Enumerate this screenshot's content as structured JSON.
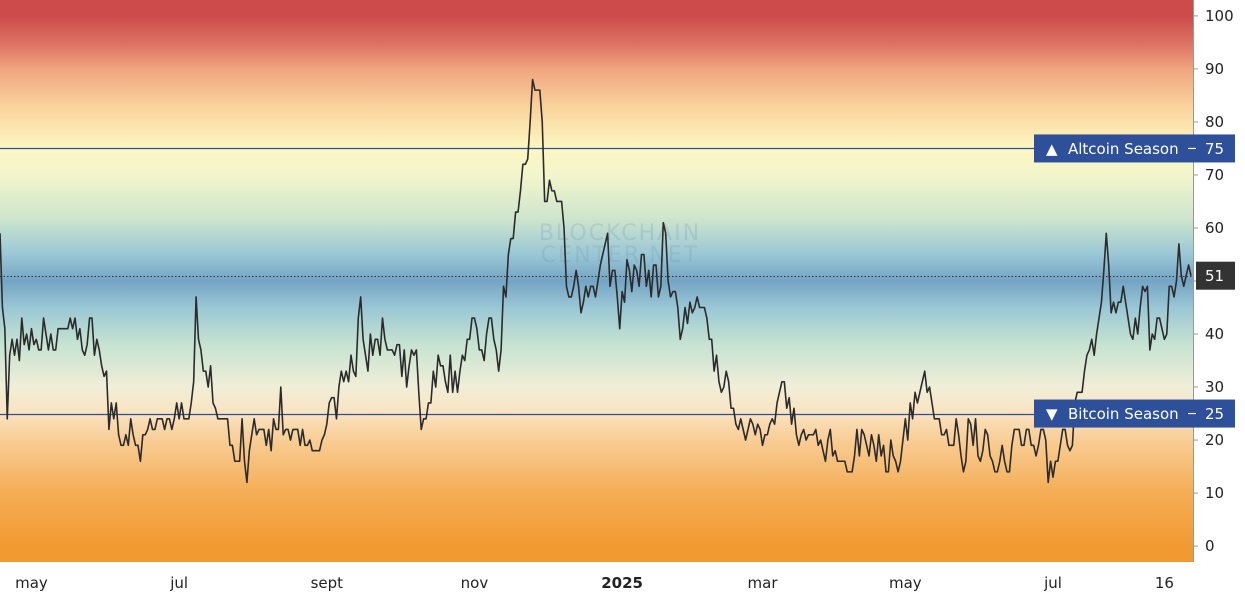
{
  "chart_data": {
    "type": "line",
    "y_range": [
      -3,
      103
    ],
    "grid": false,
    "y_ticks": [
      "0",
      "10",
      "20",
      "30",
      "40",
      "50",
      "60",
      "70",
      "80",
      "90",
      "100"
    ],
    "x_ticks": [
      {
        "label": "may",
        "i": 13
      },
      {
        "label": "jul",
        "i": 74
      },
      {
        "label": "sept",
        "i": 135
      },
      {
        "label": "nov",
        "i": 196
      },
      {
        "label": "2025",
        "i": 257,
        "bold": true
      },
      {
        "label": "mar",
        "i": 315
      },
      {
        "label": "may",
        "i": 374
      },
      {
        "label": "jul",
        "i": 435
      },
      {
        "label": "16",
        "i": 481
      }
    ],
    "watermark": [
      "BLOCKCHAIN",
      "CENTER.NET"
    ],
    "thresholds": [
      {
        "label": "Altcoin Season",
        "value": 75,
        "arrow": "▲",
        "value_label": "75",
        "color": "#2e4f9a"
      },
      {
        "label": "Bitcoin Season",
        "value": 25,
        "arrow": "▼",
        "value_label": "25",
        "color": "#2e4f9a"
      }
    ],
    "current": {
      "value": 51,
      "value_label": "51"
    },
    "colors": {
      "line": "#2b2b2b",
      "badge": "#2e4f9a",
      "current_badge": "#333333",
      "gradient": {
        "0": "#f29a32",
        "10": "#f5ad55",
        "20": "#f8cd95",
        "25": "#fae3c0",
        "30": "#f1eed8",
        "38": "#c6e3d2",
        "45": "#9ac7d5",
        "50": "#74a4c4",
        "55": "#9ac7d5",
        "62": "#cfe6cd",
        "70": "#f3f5cc",
        "75": "#fdf7c2",
        "82": "#fbd7a0",
        "90": "#f0a57e",
        "95": "#dc7062",
        "100": "#cd4b4b"
      }
    },
    "series": [
      {
        "values": [
          59,
          45,
          41,
          24,
          36,
          39,
          36,
          39,
          35,
          43,
          38,
          40,
          37,
          41,
          38,
          39,
          37,
          37,
          43,
          40,
          37,
          40,
          37,
          37,
          41,
          41,
          41,
          41,
          41,
          43,
          41,
          43,
          39,
          41,
          37,
          36,
          38,
          43,
          43,
          36,
          39,
          37,
          34,
          32,
          33,
          22,
          27,
          24,
          27,
          21,
          19,
          19,
          21,
          19,
          24,
          21,
          19,
          19,
          16,
          21,
          21,
          22,
          24,
          22,
          22,
          24,
          24,
          24,
          22,
          24,
          24,
          22,
          24,
          27,
          24,
          27,
          24,
          24,
          24,
          27,
          31,
          47,
          39,
          37,
          33,
          33,
          30,
          34,
          27,
          26,
          24,
          24,
          24,
          24,
          24,
          19,
          19,
          16,
          16,
          16,
          24,
          16,
          12,
          18,
          21,
          24,
          21,
          22,
          22,
          22,
          19,
          22,
          18,
          24,
          22,
          22,
          30,
          21,
          22,
          22,
          20,
          22,
          22,
          22,
          19,
          22,
          19,
          19,
          20,
          18,
          18,
          18,
          18,
          20,
          21,
          23,
          27,
          28,
          28,
          24,
          30,
          33,
          31,
          33,
          31,
          36,
          33,
          32,
          43,
          47,
          39,
          36,
          33,
          40,
          36,
          39,
          39,
          36,
          43,
          39,
          37,
          37,
          37,
          36,
          38,
          38,
          32,
          37,
          30,
          34,
          37,
          36,
          37,
          29,
          22,
          24,
          24,
          27,
          27,
          33,
          30,
          36,
          34,
          34,
          31,
          29,
          36,
          29,
          33,
          29,
          33,
          36,
          35,
          39,
          39,
          43,
          43,
          41,
          37,
          37,
          35,
          40,
          43,
          43,
          39,
          37,
          33,
          37,
          49,
          47,
          55,
          58,
          58,
          63,
          63,
          67,
          72,
          72,
          73,
          80,
          88,
          86,
          86,
          86,
          80,
          65,
          65,
          69,
          67,
          67,
          65,
          65,
          65,
          60,
          49,
          47,
          47,
          49,
          52,
          49,
          44,
          46,
          49,
          47,
          49,
          49,
          47,
          50,
          53,
          55,
          57,
          59,
          49,
          52,
          52,
          47,
          41,
          48,
          46,
          54,
          52,
          48,
          53,
          52,
          49,
          55,
          55,
          49,
          52,
          47,
          53,
          53,
          47,
          49,
          61,
          59,
          50,
          47,
          48,
          48,
          45,
          39,
          41,
          45,
          42,
          46,
          44,
          45,
          47,
          45,
          45,
          45,
          43,
          39,
          39,
          33,
          36,
          31,
          29,
          30,
          33,
          31,
          26,
          26,
          23,
          22,
          24,
          22,
          20,
          22,
          24,
          23,
          21,
          23,
          22,
          19,
          21,
          21,
          23,
          24,
          23,
          27,
          29,
          31,
          31,
          26,
          28,
          23,
          26,
          21,
          19,
          21,
          22,
          20,
          21,
          21,
          21,
          22,
          19,
          20,
          18,
          16,
          20,
          22,
          17,
          18,
          16,
          16,
          16,
          16,
          14,
          14,
          14,
          17,
          22,
          17,
          22,
          21,
          19,
          17,
          21,
          19,
          16,
          21,
          17,
          19,
          14,
          14,
          20,
          17,
          16,
          14,
          16,
          20,
          24,
          20,
          27,
          24,
          29,
          27,
          29,
          31,
          33,
          29,
          30,
          27,
          24,
          24,
          24,
          21,
          21,
          22,
          19,
          19,
          19,
          24,
          21,
          17,
          14,
          16,
          24,
          23,
          19,
          24,
          17,
          16,
          18,
          22,
          21,
          17,
          16,
          14,
          14,
          16,
          19,
          16,
          14,
          14,
          19,
          22,
          22,
          22,
          19,
          19,
          22,
          22,
          19,
          19,
          17,
          19,
          22,
          22,
          20,
          12,
          16,
          13,
          16,
          16,
          19,
          22,
          22,
          19,
          18,
          19,
          27,
          29,
          29,
          29,
          33,
          36,
          37,
          39,
          36,
          40,
          43,
          46,
          52,
          59,
          53,
          44,
          46,
          44,
          46,
          46,
          49,
          46,
          43,
          40,
          39,
          43,
          40,
          45,
          49,
          48,
          49,
          37,
          40,
          39,
          43,
          43,
          41,
          39,
          40,
          49,
          49,
          47,
          50,
          57,
          51,
          49,
          51,
          53,
          51
        ]
      }
    ]
  }
}
